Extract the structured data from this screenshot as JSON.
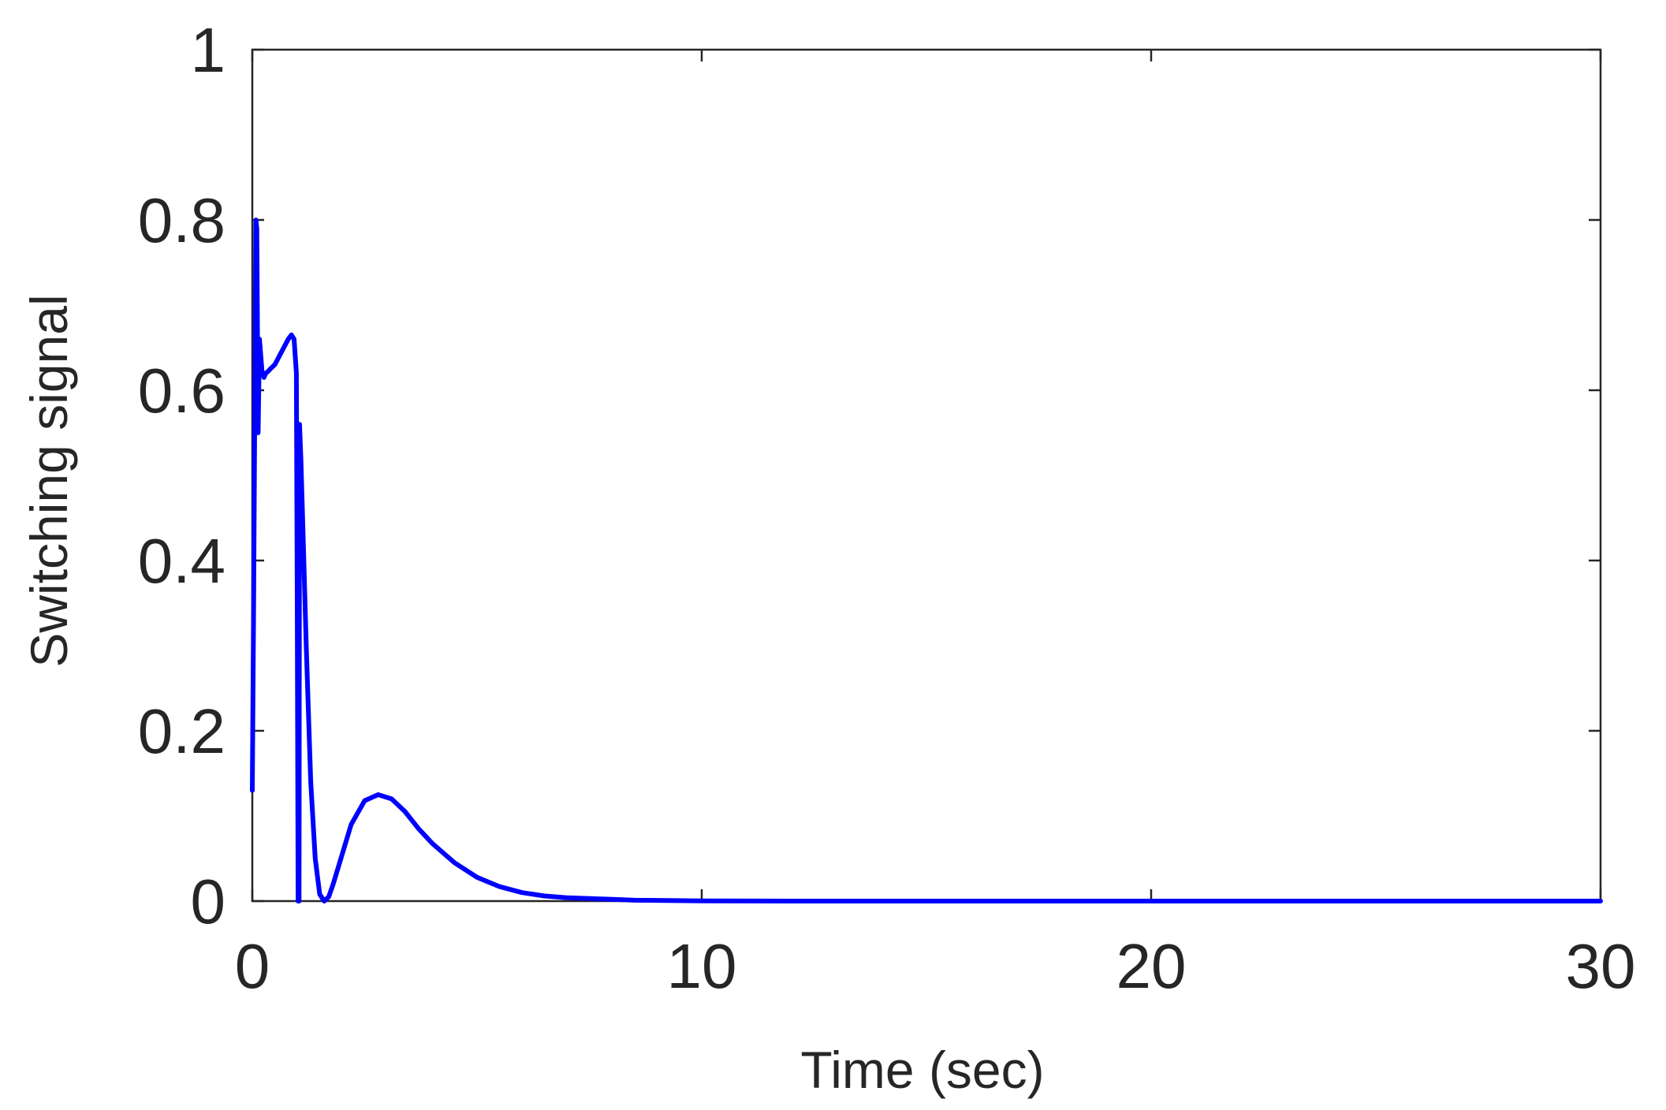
{
  "chart_data": {
    "type": "line",
    "title": "",
    "xlabel": "Time (sec)",
    "ylabel": "Switching signal",
    "xlim": [
      0,
      30
    ],
    "ylim": [
      0,
      1
    ],
    "xticks": [
      0,
      10,
      20,
      30
    ],
    "yticks": [
      0,
      0.2,
      0.4,
      0.6,
      0.8,
      1
    ],
    "xtick_labels": [
      "0",
      "10",
      "20",
      "30"
    ],
    "ytick_labels": [
      "0",
      "0.2",
      "0.4",
      "0.6",
      "0.8",
      "1"
    ],
    "grid": false,
    "legend": "none",
    "series": [
      {
        "color": "#0000ff",
        "x": [
          0.0,
          0.03,
          0.06,
          0.08,
          0.1,
          0.13,
          0.16,
          0.19,
          0.22,
          0.26,
          0.3,
          0.35,
          0.4,
          0.5,
          0.6,
          0.7,
          0.8,
          0.87,
          0.93,
          0.98,
          1.0,
          1.02,
          1.03,
          1.04,
          1.05,
          1.08,
          1.12,
          1.2,
          1.3,
          1.4,
          1.5,
          1.6,
          1.7,
          1.8,
          2.0,
          2.2,
          2.5,
          2.8,
          3.1,
          3.4,
          3.7,
          4.0,
          4.5,
          5.0,
          5.5,
          6.0,
          6.5,
          7.0,
          7.5,
          8.0,
          8.5,
          9.0,
          10.0,
          11.0,
          12.0,
          15.0,
          20.0,
          25.0,
          30.0
        ],
        "y": [
          0.13,
          0.35,
          0.62,
          0.8,
          0.79,
          0.55,
          0.66,
          0.64,
          0.62,
          0.615,
          0.62,
          0.622,
          0.625,
          0.63,
          0.64,
          0.65,
          0.66,
          0.665,
          0.66,
          0.62,
          0.35,
          0.0,
          0.0,
          0.0,
          0.56,
          0.52,
          0.45,
          0.3,
          0.14,
          0.05,
          0.008,
          0.0,
          0.005,
          0.02,
          0.055,
          0.09,
          0.118,
          0.125,
          0.12,
          0.105,
          0.085,
          0.068,
          0.045,
          0.028,
          0.017,
          0.01,
          0.006,
          0.004,
          0.003,
          0.002,
          0.001,
          0.0008,
          0.0003,
          0.0001,
          0.0,
          0.0,
          0.0,
          0.0,
          0.0
        ]
      }
    ]
  }
}
